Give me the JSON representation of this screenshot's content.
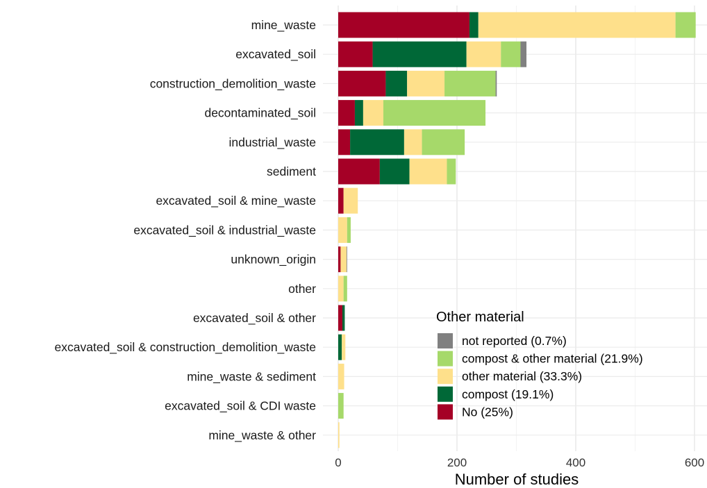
{
  "chart_data": {
    "type": "bar",
    "orientation": "horizontal",
    "stacked": true,
    "xlabel": "Number of studies",
    "ylabel": "",
    "xlim": [
      0,
      620
    ],
    "xticks": [
      0,
      200,
      400,
      600
    ],
    "grid": true,
    "legend_title": "Other material",
    "legend_position": "bottom-right inside",
    "categories": [
      "mine_waste",
      "excavated_soil",
      "construction_demolition_waste",
      "decontaminated_soil",
      "industrial_waste",
      "sediment",
      "excavated_soil & mine_waste",
      "excavated_soil & industrial_waste",
      "unknown_origin",
      "other",
      "excavated_soil & other",
      "excavated_soil & construction_demolition_waste",
      "mine_waste & sediment",
      "excavated_soil & CDI waste",
      "mine_waste & other"
    ],
    "series": [
      {
        "name": "No (25%)",
        "color": "#a50026",
        "values": [
          221,
          58,
          80,
          28,
          20,
          70,
          9,
          0,
          4,
          0,
          7,
          0,
          0,
          0,
          0
        ]
      },
      {
        "name": "compost (19.1%)",
        "color": "#006837",
        "values": [
          15,
          158,
          36,
          14,
          91,
          50,
          0,
          0,
          0,
          0,
          4,
          6,
          0,
          0,
          0
        ]
      },
      {
        "name": "other material (33.3%)",
        "color": "#fee08b",
        "values": [
          332,
          58,
          63,
          34,
          30,
          63,
          24,
          15,
          10,
          9,
          0,
          6,
          10,
          0,
          2
        ]
      },
      {
        "name": "compost & other material (21.9%)",
        "color": "#a6d96a",
        "values": [
          34,
          33,
          86,
          172,
          72,
          15,
          0,
          6,
          0,
          6,
          0,
          0,
          0,
          9,
          0
        ]
      },
      {
        "name": "not reported (0.7%)",
        "color": "#808080",
        "values": [
          0,
          10,
          2,
          0,
          0,
          0,
          0,
          0,
          1,
          0,
          0,
          0,
          0,
          0,
          0
        ]
      }
    ],
    "legend_order": [
      "not reported (0.7%)",
      "compost & other material (21.9%)",
      "other material (33.3%)",
      "compost (19.1%)",
      "No (25%)"
    ]
  }
}
